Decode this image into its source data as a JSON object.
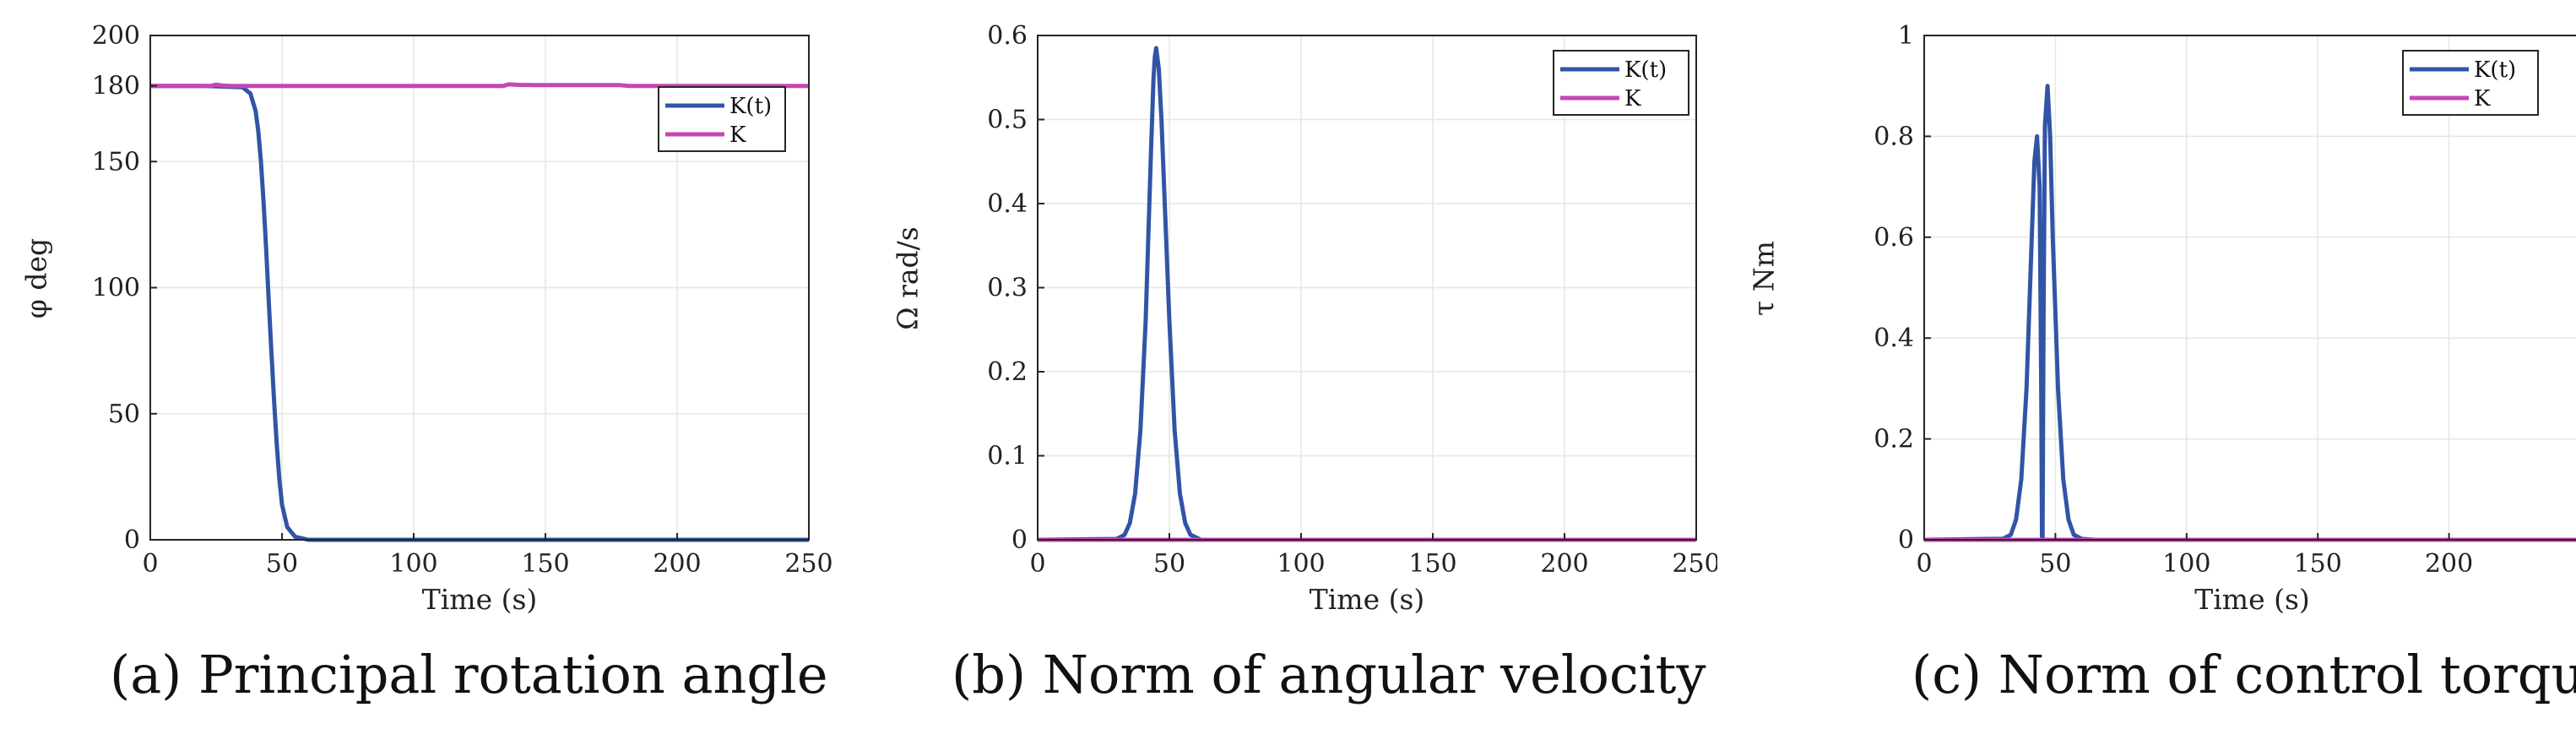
{
  "colors": {
    "kt": "#3154a6",
    "k": "#c845b4",
    "grid": "#e6e6e6",
    "axis": "#262626"
  },
  "charts": [
    {
      "id": "a",
      "caption": "(a)  Principal rotation angle",
      "chart_data": {
        "type": "line",
        "title": "",
        "xlabel": "Time (s)",
        "ylabel": "φ deg",
        "xlim": [
          0,
          250
        ],
        "ylim": [
          0,
          200
        ],
        "xticks": [
          0,
          50,
          100,
          150,
          200,
          250
        ],
        "yticks": [
          0,
          50,
          100,
          150,
          180,
          200
        ],
        "grid": true,
        "legend_position": "top-right",
        "series": [
          {
            "name": "K(t)",
            "color": "#3154a6",
            "x": [
              0,
              20,
              35,
              38,
              40,
              41,
              42,
              43,
              44,
              45,
              46,
              47,
              48,
              49,
              50,
              52,
              55,
              60,
              100,
              150,
              200,
              250
            ],
            "y": [
              180,
              180,
              179.5,
              177,
              170,
              162,
              150,
              134,
              115,
              94,
              74,
              55,
              38,
              24,
              14,
              5,
              1.2,
              0,
              0,
              0,
              0,
              0
            ]
          },
          {
            "name": "K",
            "color": "#c845b4",
            "x": [
              0,
              23,
              25,
              27,
              30,
              100,
              134,
              136,
              140,
              150,
              178,
              182,
              250
            ],
            "y": [
              180,
              180,
              180.5,
              180.2,
              180,
              180,
              180,
              180.6,
              180.4,
              180.3,
              180.3,
              180,
              180
            ]
          }
        ]
      }
    },
    {
      "id": "b",
      "caption": "(b)  Norm of angular velocity",
      "chart_data": {
        "type": "line",
        "title": "",
        "xlabel": "Time (s)",
        "ylabel": "Ω rad/s",
        "xlim": [
          0,
          250
        ],
        "ylim": [
          0,
          0.6
        ],
        "xticks": [
          0,
          50,
          100,
          150,
          200,
          250
        ],
        "yticks": [
          0,
          0.1,
          0.2,
          0.3,
          0.4,
          0.5,
          0.6
        ],
        "grid": true,
        "legend_position": "top-right",
        "series": [
          {
            "name": "K(t)",
            "color": "#3154a6",
            "x": [
              0,
              30,
              33,
              35,
              37,
              39,
              41,
              42,
              43,
              44,
              44.5,
              45,
              46,
              47,
              48,
              50,
              52,
              54,
              56,
              58,
              62,
              100,
              250
            ],
            "y": [
              0,
              0.001,
              0.006,
              0.02,
              0.055,
              0.13,
              0.26,
              0.36,
              0.46,
              0.55,
              0.575,
              0.585,
              0.56,
              0.5,
              0.42,
              0.26,
              0.13,
              0.055,
              0.02,
              0.006,
              0,
              0,
              0
            ]
          },
          {
            "name": "K",
            "color": "#c845b4",
            "x": [
              0,
              250
            ],
            "y": [
              0,
              0
            ]
          }
        ]
      }
    },
    {
      "id": "c",
      "caption": "(c)  Norm of control torque",
      "chart_data": {
        "type": "line",
        "title": "",
        "xlabel": "Time (s)",
        "ylabel": "τ Nm",
        "xlim": [
          0,
          250
        ],
        "ylim": [
          0,
          1
        ],
        "xticks": [
          0,
          50,
          100,
          150,
          200
        ],
        "yticks": [
          0,
          0.2,
          0.4,
          0.6,
          0.8,
          1
        ],
        "grid": true,
        "legend_position": "top-right",
        "series": [
          {
            "name": "K(t)",
            "color": "#3154a6",
            "x": [
              0,
              30,
              33,
              35,
              37,
              39,
              41,
              42,
              43,
              44,
              44.6,
              44.9,
              45.1,
              45.5,
              46,
              47,
              48,
              49,
              51,
              53,
              55,
              57,
              60,
              65,
              100,
              250
            ],
            "y": [
              0,
              0.002,
              0.01,
              0.04,
              0.12,
              0.3,
              0.6,
              0.75,
              0.8,
              0.7,
              0.3,
              0,
              0,
              0.45,
              0.82,
              0.9,
              0.8,
              0.6,
              0.3,
              0.12,
              0.04,
              0.01,
              0.002,
              0,
              0,
              0
            ]
          },
          {
            "name": "K",
            "color": "#c845b4",
            "x": [
              0,
              250
            ],
            "y": [
              0,
              0
            ]
          }
        ]
      }
    }
  ]
}
